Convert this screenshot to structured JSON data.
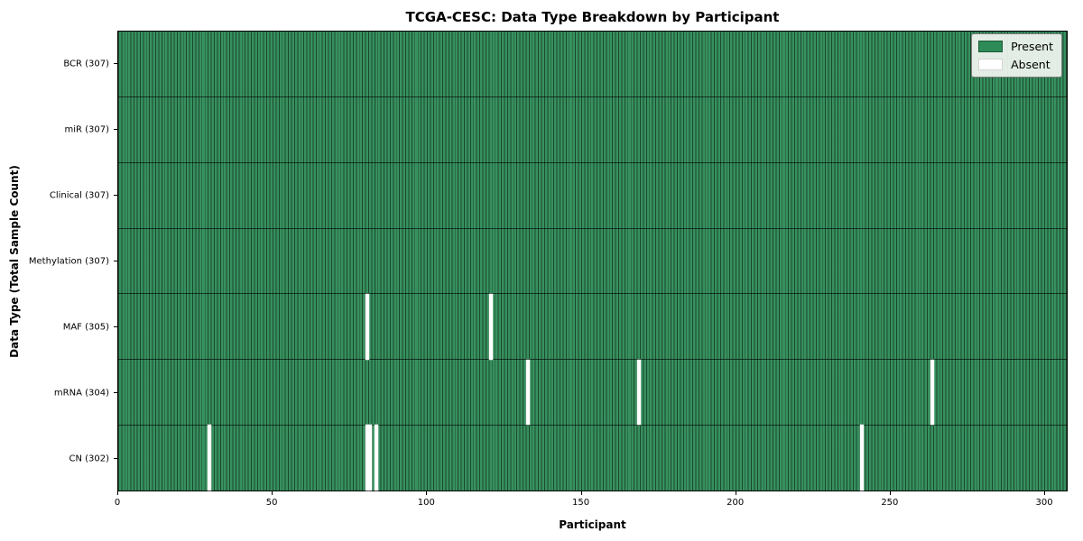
{
  "chart": {
    "title": "TCGA-CESC: Data Type Breakdown by Participant",
    "xlabel": "Participant",
    "ylabel": "Data Type (Total Sample Count)",
    "legend": {
      "present": "Present",
      "absent": "Absent"
    }
  },
  "chart_data": {
    "type": "heatmap",
    "title": "TCGA-CESC: Data Type Breakdown by Participant",
    "xlabel": "Participant",
    "ylabel": "Data Type (Total Sample Count)",
    "legend_position": "upper right",
    "legend": [
      {
        "label": "Present",
        "color": "#2e8b57"
      },
      {
        "label": "Absent",
        "color": "#ffffff"
      }
    ],
    "colors": {
      "present": "#2e8b57",
      "absent": "#ffffff",
      "cell_edge": "#14301f",
      "row_separator": "#000000"
    },
    "n_participants": 307,
    "x_range": [
      0,
      307
    ],
    "x_ticks": [
      0,
      50,
      100,
      150,
      200,
      250,
      300
    ],
    "rows": [
      {
        "label": "BCR (307)",
        "data_type": "BCR",
        "total": 307,
        "absent_participants": []
      },
      {
        "label": "miR (307)",
        "data_type": "miR",
        "total": 307,
        "absent_participants": []
      },
      {
        "label": "Clinical (307)",
        "data_type": "Clinical",
        "total": 307,
        "absent_participants": []
      },
      {
        "label": "Methylation (307)",
        "data_type": "Methylation",
        "total": 307,
        "absent_participants": []
      },
      {
        "label": "MAF (305)",
        "data_type": "MAF",
        "total": 305,
        "absent_participants": [
          80,
          120
        ]
      },
      {
        "label": "mRNA (304)",
        "data_type": "mRNA",
        "total": 304,
        "absent_participants": [
          132,
          168,
          263
        ]
      },
      {
        "label": "CN (302)",
        "data_type": "CN",
        "total": 302,
        "absent_participants": [
          29,
          80,
          81,
          83,
          240
        ]
      }
    ]
  }
}
